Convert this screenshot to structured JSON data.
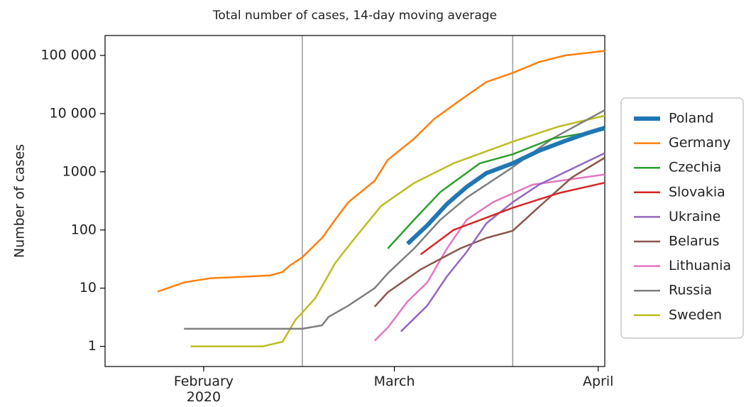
{
  "chart_data": {
    "type": "line",
    "title": "Total number of cases, 14-day moving average",
    "ylabel": "Number of cases",
    "log_y": true,
    "xlim": [
      17,
      93
    ],
    "xticks": [
      {
        "value": 32,
        "label": "February\n2020"
      },
      {
        "value": 61,
        "label": "March"
      },
      {
        "value": 92,
        "label": "April"
      }
    ],
    "ylim": [
      0.45,
      220000
    ],
    "yticks": [
      {
        "value": 100000,
        "label": "100 000"
      },
      {
        "value": 10000,
        "label": "10 000"
      },
      1000,
      100,
      10,
      1
    ],
    "vlines": [
      47,
      79
    ],
    "legend": "right",
    "series": [
      {
        "name": "Poland",
        "color": "#1f77b4",
        "linewidth": 6,
        "x": [
          63,
          66,
          69,
          72,
          75,
          79,
          83,
          87,
          90,
          93
        ],
        "values": [
          58,
          120,
          280,
          550,
          950,
          1400,
          2300,
          3400,
          4500,
          5700
        ]
      },
      {
        "name": "Germany",
        "color": "#ff7f0e",
        "linewidth": 2.5,
        "x": [
          25,
          29,
          33,
          42,
          44,
          45,
          47,
          50,
          52,
          54,
          58,
          60,
          64,
          67,
          71,
          75,
          79,
          83,
          87,
          93
        ],
        "values": [
          8.7,
          12.5,
          14.8,
          16.5,
          19,
          24,
          34,
          73,
          150,
          300,
          700,
          1600,
          3700,
          8000,
          17000,
          35000,
          50000,
          77000,
          100000,
          120000
        ]
      },
      {
        "name": "Czechia",
        "color": "#2ca02c",
        "linewidth": 2.5,
        "x": [
          60,
          64,
          68,
          74,
          79,
          85,
          93
        ],
        "values": [
          48,
          150,
          450,
          1400,
          2000,
          3700,
          5300
        ]
      },
      {
        "name": "Slovakia",
        "color": "#d62728",
        "linewidth": 2.5,
        "x": [
          65,
          70,
          79,
          86,
          93
        ],
        "values": [
          38,
          100,
          240,
          430,
          650
        ]
      },
      {
        "name": "Ukraine",
        "color": "#9467bd",
        "linewidth": 2.5,
        "x": [
          62,
          66,
          69,
          72,
          75,
          79,
          83,
          93
        ],
        "values": [
          1.8,
          5,
          16,
          42,
          130,
          300,
          600,
          2100
        ]
      },
      {
        "name": "Belarus",
        "color": "#8c564b",
        "linewidth": 2.5,
        "x": [
          58,
          60,
          65,
          71,
          75,
          79,
          83,
          88,
          93
        ],
        "values": [
          4.8,
          8.5,
          21,
          48,
          73,
          97,
          250,
          800,
          1750
        ]
      },
      {
        "name": "Lithuania",
        "color": "#e377c2",
        "linewidth": 2.5,
        "x": [
          58,
          60,
          63,
          66,
          69,
          72,
          76,
          82,
          93
        ],
        "values": [
          1.25,
          2.1,
          5.9,
          12.5,
          48,
          150,
          300,
          600,
          900
        ]
      },
      {
        "name": "Russia",
        "color": "#7f7f7f",
        "linewidth": 2.5,
        "x": [
          29,
          47,
          50,
          51,
          54,
          58,
          60,
          64,
          68,
          72,
          79,
          85,
          93
        ],
        "values": [
          2,
          2,
          2.3,
          3.2,
          5,
          10,
          18,
          48,
          150,
          360,
          1200,
          3700,
          11500
        ]
      },
      {
        "name": "Sweden",
        "color": "#bcbd22",
        "linewidth": 2.5,
        "x": [
          30,
          41,
          44,
          46,
          47,
          49,
          52,
          55,
          59,
          64,
          70,
          79,
          86,
          93
        ],
        "values": [
          1,
          1,
          1.2,
          2.9,
          3.8,
          6.8,
          27,
          73,
          260,
          640,
          1400,
          3300,
          6000,
          9200
        ]
      }
    ]
  }
}
